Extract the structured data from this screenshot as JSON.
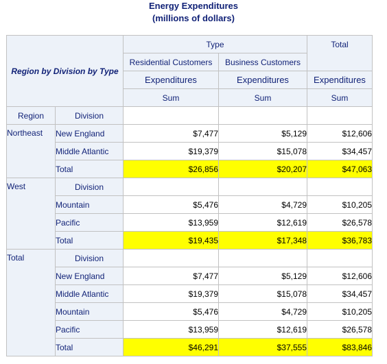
{
  "title": "Energy Expenditures",
  "subtitle": "(millions of dollars)",
  "header": {
    "corner": "Region by Division by Type",
    "type": "Type",
    "total": "Total",
    "residential": "Residential Customers",
    "business": "Business Customers",
    "expenditures": "Expenditures",
    "sum": "Sum",
    "region_col": "Region",
    "division_col": "Division"
  },
  "regions": [
    {
      "name": "Northeast",
      "rows": [
        {
          "division": "New England",
          "residential": "$7,477",
          "business": "$5,129",
          "total": "$12,606"
        },
        {
          "division": "Middle Atlantic",
          "residential": "$19,379",
          "business": "$15,078",
          "total": "$34,457"
        }
      ],
      "subtotal": {
        "label": "Total",
        "residential": "$26,856",
        "business": "$20,207",
        "total": "$47,063"
      }
    },
    {
      "name": "West",
      "division_header": "Division",
      "rows": [
        {
          "division": "Mountain",
          "residential": "$5,476",
          "business": "$4,729",
          "total": "$10,205"
        },
        {
          "division": "Pacific",
          "residential": "$13,959",
          "business": "$12,619",
          "total": "$26,578"
        }
      ],
      "subtotal": {
        "label": "Total",
        "residential": "$19,435",
        "business": "$17,348",
        "total": "$36,783"
      }
    },
    {
      "name": "Total",
      "division_header": "Division",
      "rows": [
        {
          "division": "New England",
          "residential": "$7,477",
          "business": "$5,129",
          "total": "$12,606"
        },
        {
          "division": "Middle Atlantic",
          "residential": "$19,379",
          "business": "$15,078",
          "total": "$34,457"
        },
        {
          "division": "Mountain",
          "residential": "$5,476",
          "business": "$4,729",
          "total": "$10,205"
        },
        {
          "division": "Pacific",
          "residential": "$13,959",
          "business": "$12,619",
          "total": "$26,578"
        }
      ],
      "subtotal": {
        "label": "Total",
        "residential": "$46,291",
        "business": "$37,555",
        "total": "$83,846"
      }
    }
  ],
  "colors": {
    "header_bg": "#edf2f9",
    "header_text": "#112277",
    "highlight": "#ffff00",
    "border": "#c1c1c1"
  }
}
